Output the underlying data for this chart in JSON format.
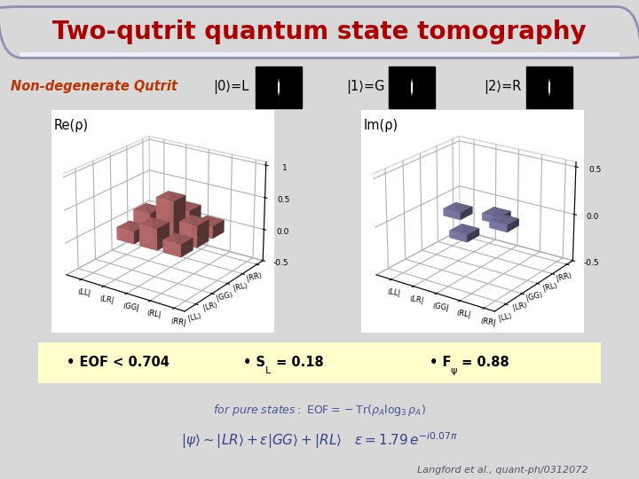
{
  "title": "Two-qutrit quantum state tomography",
  "title_color": "#aa0000",
  "subtitle": "Non-degenerate Qutrit",
  "subtitle_color": "#bb3300",
  "labels_row": [
    "|0⟩=L",
    "|1⟩=G",
    "|2⟩=R"
  ],
  "re_label": "Re(ρ)",
  "im_label": "Im(ρ)",
  "basis_labels": [
    "LL",
    "LR",
    "GG",
    "RL",
    "RR"
  ],
  "citation": "Langford et al., quant-ph/0312072",
  "bg_color": "#d8d8d8",
  "bar_color_tall": "#cc7777",
  "bar_color_short": "#8888bb",
  "eof_text": "• EOF < 0.704",
  "sl_text": "• S",
  "sl_sub": "L",
  "sl_val": " = 0.18",
  "fpsi_text": "• F",
  "fpsi_sub": "ψ",
  "fpsi_val": " = 0.88",
  "title_box_color": "#b8c0d8",
  "title_box_edge": "#9090b0"
}
